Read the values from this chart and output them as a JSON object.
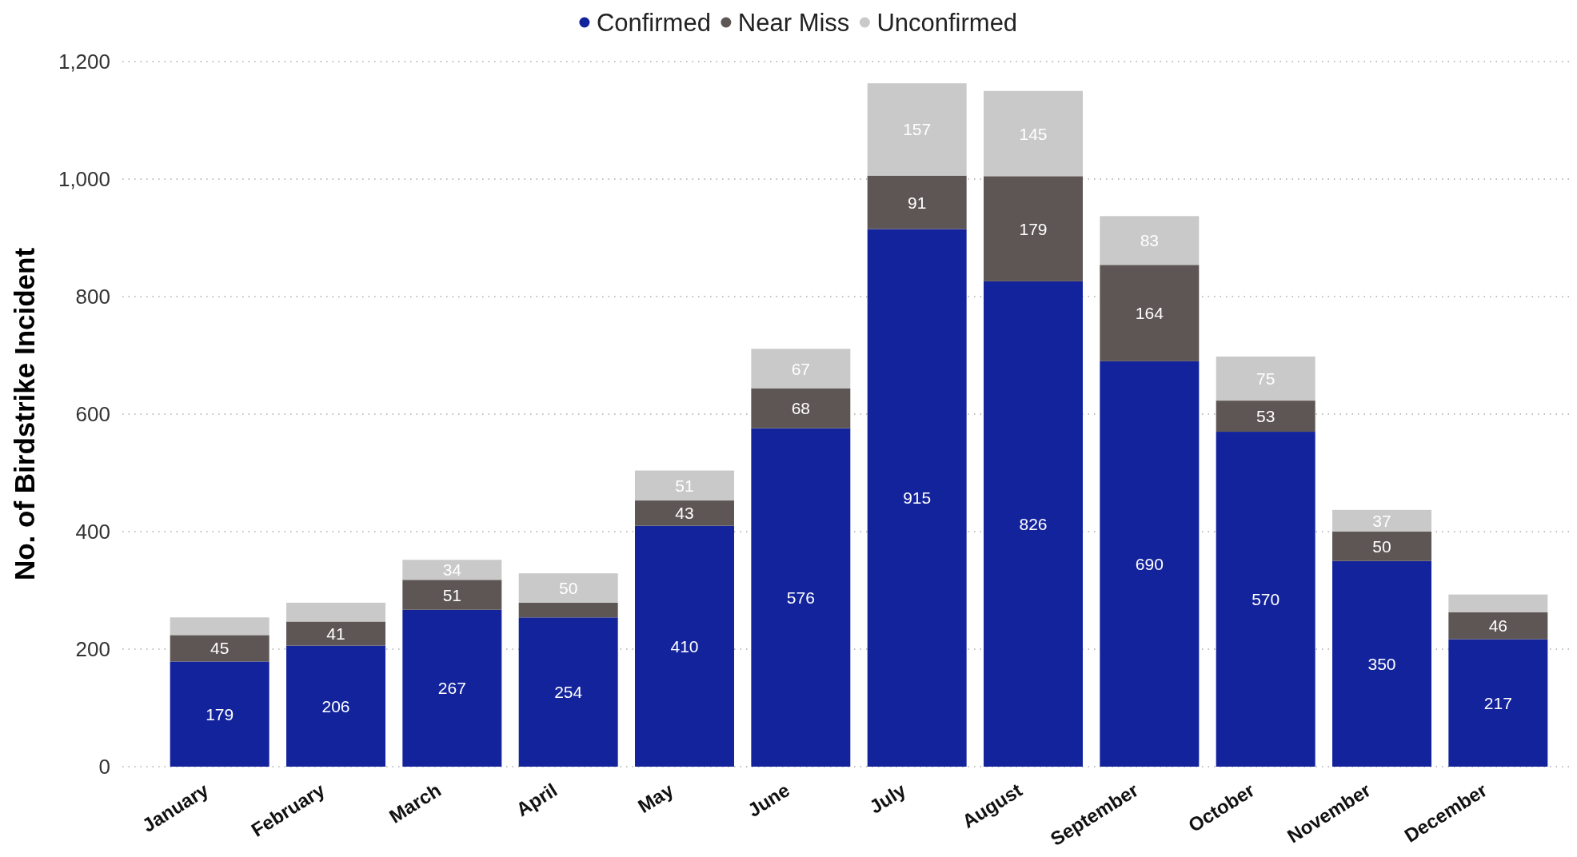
{
  "chart_data": {
    "type": "bar",
    "stacked": true,
    "categories": [
      "January",
      "February",
      "March",
      "April",
      "May",
      "June",
      "July",
      "August",
      "September",
      "October",
      "November",
      "December"
    ],
    "series": [
      {
        "name": "Confirmed",
        "color": "#13239c",
        "values": [
          179,
          206,
          267,
          254,
          410,
          576,
          915,
          826,
          690,
          570,
          350,
          217
        ],
        "value_labels": [
          "179",
          "206",
          "267",
          "254",
          "410",
          "576",
          "915",
          "826",
          "690",
          "570",
          "350",
          "217"
        ]
      },
      {
        "name": "Near Miss",
        "color": "#5e5654",
        "values": [
          45,
          41,
          51,
          25,
          43,
          68,
          91,
          179,
          164,
          53,
          50,
          46
        ],
        "value_labels": [
          "45",
          "41",
          "51",
          null,
          "43",
          "68",
          "91",
          "179",
          "164",
          "53",
          "50",
          "46"
        ]
      },
      {
        "name": "Unconfirmed",
        "color": "#c9c9c9",
        "values": [
          30,
          32,
          34,
          50,
          51,
          67,
          157,
          145,
          83,
          75,
          37,
          30
        ],
        "value_labels": [
          null,
          null,
          "34",
          "50",
          "51",
          "67",
          "157",
          "145",
          "83",
          "75",
          "37",
          null
        ]
      }
    ],
    "ylabel": "No. of Birdstrike Incident",
    "ylim": [
      0,
      1200
    ],
    "yticks": [
      0,
      200,
      400,
      600,
      800,
      {
        "value": 1000,
        "label": "1,000"
      },
      {
        "value": 1200,
        "label": "1,200"
      }
    ],
    "grid": "y",
    "legend": "top"
  }
}
